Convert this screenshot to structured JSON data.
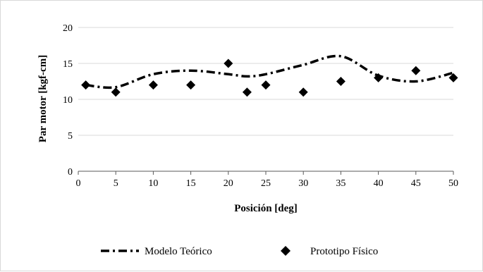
{
  "chart_data": {
    "type": "line",
    "xlabel": "Posición [deg]",
    "ylabel": "Par motor [kgf-cm]",
    "xlim": [
      0,
      50
    ],
    "ylim": [
      0,
      20
    ],
    "x_ticks": [
      0,
      5,
      10,
      15,
      20,
      25,
      30,
      35,
      40,
      45,
      50
    ],
    "y_ticks": [
      0,
      5,
      10,
      15,
      20
    ],
    "grid": "horizontal",
    "legend_position": "bottom",
    "series": [
      {
        "name": "Modelo Teórico",
        "type": "line",
        "style": "dash-dot",
        "color": "#000000",
        "x": [
          1,
          5,
          10,
          15,
          20,
          22.5,
          25,
          30,
          35,
          40,
          45,
          50
        ],
        "y": [
          12,
          11.7,
          13.5,
          14,
          13.5,
          13.2,
          13.5,
          14.8,
          16,
          13.3,
          12.5,
          13.7
        ]
      },
      {
        "name": "Prototipo Físico",
        "type": "scatter",
        "marker": "diamond",
        "color": "#000000",
        "x": [
          1,
          5,
          10,
          15,
          20,
          22.5,
          25,
          30,
          35,
          40,
          45,
          50
        ],
        "y": [
          12,
          11,
          12,
          12,
          15,
          11,
          12,
          11,
          12.5,
          13,
          14,
          13
        ]
      }
    ]
  }
}
